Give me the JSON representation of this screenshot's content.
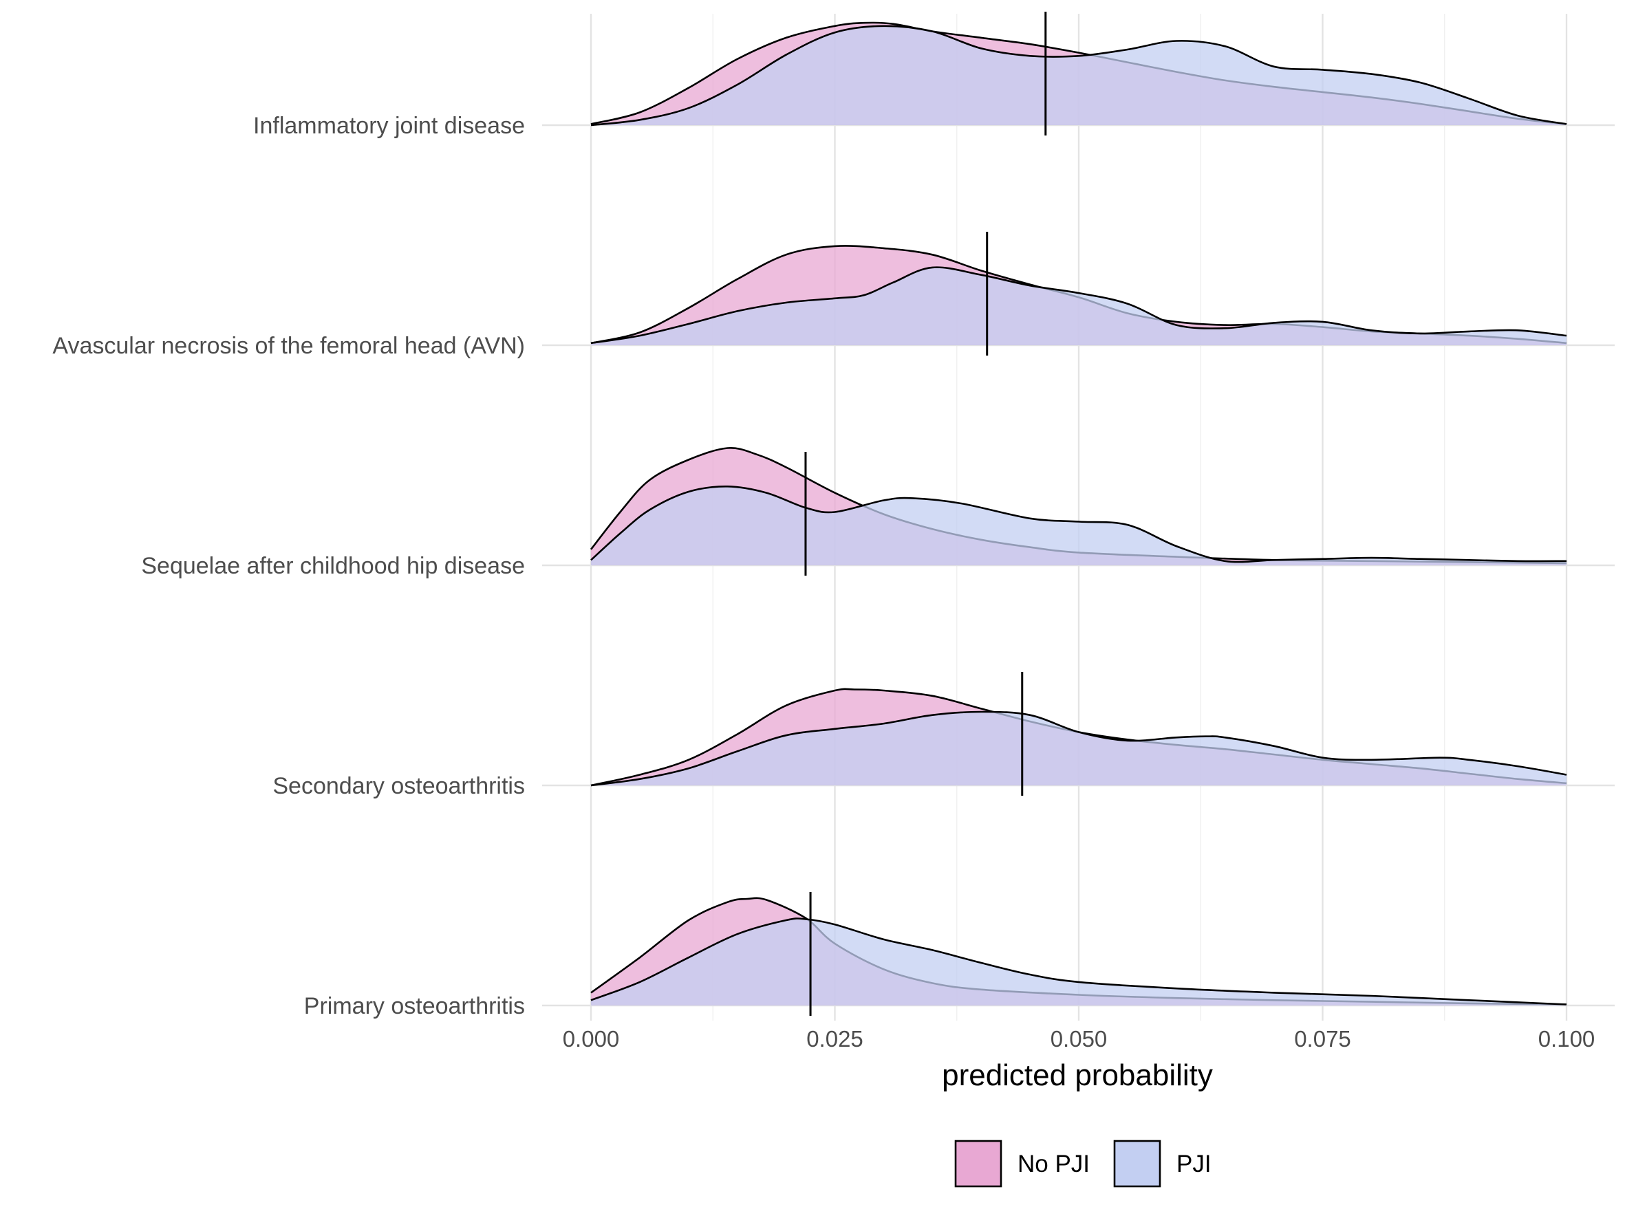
{
  "chart_data": {
    "type": "ridgeline-density",
    "xlabel": "predicted probability",
    "xlim": [
      0,
      0.1
    ],
    "x_ticks": [
      0.0,
      0.025,
      0.05,
      0.075,
      0.1
    ],
    "x_tick_labels": [
      "0.000",
      "0.025",
      "0.050",
      "0.075",
      "0.100"
    ],
    "categories": [
      "Primary osteoarthritis",
      "Secondary osteoarthritis",
      "Sequelae after childhood hip disease",
      "Avascular necrosis of the femoral head (AVN)",
      "Inflammatory joint disease"
    ],
    "series": [
      {
        "name": "No PJI",
        "color": "#e8a8d3",
        "curves": {
          "Primary osteoarthritis": [
            [
              0,
              0.12
            ],
            [
              0.005,
              0.45
            ],
            [
              0.01,
              0.8
            ],
            [
              0.014,
              0.97
            ],
            [
              0.016,
              1.0
            ],
            [
              0.018,
              0.99
            ],
            [
              0.022,
              0.82
            ],
            [
              0.025,
              0.58
            ],
            [
              0.03,
              0.34
            ],
            [
              0.035,
              0.21
            ],
            [
              0.04,
              0.15
            ],
            [
              0.05,
              0.1
            ],
            [
              0.06,
              0.07
            ],
            [
              0.07,
              0.05
            ],
            [
              0.08,
              0.035
            ],
            [
              0.09,
              0.02
            ],
            [
              0.1,
              0.01
            ]
          ],
          "Secondary osteoarthritis": [
            [
              0,
              0.0
            ],
            [
              0.005,
              0.1
            ],
            [
              0.01,
              0.24
            ],
            [
              0.015,
              0.48
            ],
            [
              0.02,
              0.75
            ],
            [
              0.025,
              0.89
            ],
            [
              0.027,
              0.9
            ],
            [
              0.03,
              0.89
            ],
            [
              0.035,
              0.84
            ],
            [
              0.04,
              0.72
            ],
            [
              0.045,
              0.6
            ],
            [
              0.05,
              0.5
            ],
            [
              0.055,
              0.43
            ],
            [
              0.06,
              0.38
            ],
            [
              0.065,
              0.34
            ],
            [
              0.07,
              0.29
            ],
            [
              0.075,
              0.24
            ],
            [
              0.08,
              0.2
            ],
            [
              0.085,
              0.16
            ],
            [
              0.09,
              0.11
            ],
            [
              0.095,
              0.06
            ],
            [
              0.1,
              0.02
            ]
          ],
          "Sequelae after childhood hip disease": [
            [
              0,
              0.15
            ],
            [
              0.003,
              0.5
            ],
            [
              0.006,
              0.8
            ],
            [
              0.01,
              0.99
            ],
            [
              0.014,
              1.1
            ],
            [
              0.017,
              1.04
            ],
            [
              0.02,
              0.92
            ],
            [
              0.025,
              0.68
            ],
            [
              0.03,
              0.48
            ],
            [
              0.035,
              0.34
            ],
            [
              0.04,
              0.24
            ],
            [
              0.045,
              0.17
            ],
            [
              0.05,
              0.12
            ],
            [
              0.06,
              0.08
            ],
            [
              0.07,
              0.05
            ],
            [
              0.08,
              0.04
            ],
            [
              0.09,
              0.03
            ],
            [
              0.1,
              0.02
            ]
          ],
          "Avascular necrosis of the femoral head (AVN)": [
            [
              0,
              0.02
            ],
            [
              0.005,
              0.12
            ],
            [
              0.01,
              0.35
            ],
            [
              0.015,
              0.62
            ],
            [
              0.02,
              0.85
            ],
            [
              0.025,
              0.93
            ],
            [
              0.03,
              0.91
            ],
            [
              0.035,
              0.85
            ],
            [
              0.04,
              0.7
            ],
            [
              0.045,
              0.57
            ],
            [
              0.05,
              0.45
            ],
            [
              0.055,
              0.3
            ],
            [
              0.06,
              0.22
            ],
            [
              0.065,
              0.19
            ],
            [
              0.07,
              0.2
            ],
            [
              0.075,
              0.17
            ],
            [
              0.08,
              0.13
            ],
            [
              0.085,
              0.11
            ],
            [
              0.09,
              0.09
            ],
            [
              0.095,
              0.06
            ],
            [
              0.1,
              0.02
            ]
          ],
          "Inflammatory joint disease": [
            [
              0,
              0.01
            ],
            [
              0.005,
              0.12
            ],
            [
              0.01,
              0.35
            ],
            [
              0.015,
              0.62
            ],
            [
              0.02,
              0.82
            ],
            [
              0.025,
              0.93
            ],
            [
              0.028,
              0.96
            ],
            [
              0.031,
              0.95
            ],
            [
              0.035,
              0.88
            ],
            [
              0.04,
              0.82
            ],
            [
              0.045,
              0.76
            ],
            [
              0.05,
              0.68
            ],
            [
              0.055,
              0.59
            ],
            [
              0.06,
              0.5
            ],
            [
              0.065,
              0.42
            ],
            [
              0.07,
              0.36
            ],
            [
              0.075,
              0.31
            ],
            [
              0.08,
              0.26
            ],
            [
              0.085,
              0.2
            ],
            [
              0.09,
              0.13
            ],
            [
              0.095,
              0.06
            ],
            [
              0.1,
              0.01
            ]
          ]
        }
      },
      {
        "name": "PJI",
        "color": "#c3cff2",
        "curves": {
          "Primary osteoarthritis": [
            [
              0,
              0.05
            ],
            [
              0.005,
              0.22
            ],
            [
              0.01,
              0.45
            ],
            [
              0.015,
              0.67
            ],
            [
              0.02,
              0.8
            ],
            [
              0.022,
              0.81
            ],
            [
              0.025,
              0.76
            ],
            [
              0.03,
              0.62
            ],
            [
              0.035,
              0.52
            ],
            [
              0.04,
              0.4
            ],
            [
              0.045,
              0.29
            ],
            [
              0.05,
              0.22
            ],
            [
              0.06,
              0.16
            ],
            [
              0.07,
              0.12
            ],
            [
              0.08,
              0.09
            ],
            [
              0.09,
              0.05
            ],
            [
              0.1,
              0.01
            ]
          ],
          "Secondary osteoarthritis": [
            [
              0,
              0.0
            ],
            [
              0.005,
              0.06
            ],
            [
              0.01,
              0.16
            ],
            [
              0.015,
              0.32
            ],
            [
              0.02,
              0.47
            ],
            [
              0.025,
              0.53
            ],
            [
              0.03,
              0.58
            ],
            [
              0.035,
              0.66
            ],
            [
              0.04,
              0.69
            ],
            [
              0.045,
              0.66
            ],
            [
              0.05,
              0.5
            ],
            [
              0.055,
              0.42
            ],
            [
              0.06,
              0.45
            ],
            [
              0.063,
              0.46
            ],
            [
              0.065,
              0.45
            ],
            [
              0.07,
              0.37
            ],
            [
              0.075,
              0.26
            ],
            [
              0.08,
              0.24
            ],
            [
              0.087,
              0.26
            ],
            [
              0.09,
              0.24
            ],
            [
              0.095,
              0.18
            ],
            [
              0.1,
              0.1
            ]
          ],
          "Sequelae after childhood hip disease": [
            [
              0,
              0.05
            ],
            [
              0.003,
              0.3
            ],
            [
              0.006,
              0.52
            ],
            [
              0.01,
              0.69
            ],
            [
              0.014,
              0.74
            ],
            [
              0.018,
              0.68
            ],
            [
              0.022,
              0.54
            ],
            [
              0.025,
              0.5
            ],
            [
              0.03,
              0.61
            ],
            [
              0.033,
              0.63
            ],
            [
              0.038,
              0.58
            ],
            [
              0.045,
              0.44
            ],
            [
              0.05,
              0.41
            ],
            [
              0.055,
              0.38
            ],
            [
              0.06,
              0.18
            ],
            [
              0.065,
              0.04
            ],
            [
              0.07,
              0.05
            ],
            [
              0.075,
              0.06
            ],
            [
              0.08,
              0.07
            ],
            [
              0.085,
              0.06
            ],
            [
              0.09,
              0.05
            ],
            [
              0.095,
              0.04
            ],
            [
              0.1,
              0.04
            ]
          ],
          "Avascular necrosis of the femoral head (AVN)": [
            [
              0,
              0.02
            ],
            [
              0.005,
              0.09
            ],
            [
              0.01,
              0.2
            ],
            [
              0.015,
              0.32
            ],
            [
              0.02,
              0.4
            ],
            [
              0.025,
              0.44
            ],
            [
              0.028,
              0.47
            ],
            [
              0.031,
              0.59
            ],
            [
              0.035,
              0.73
            ],
            [
              0.04,
              0.66
            ],
            [
              0.045,
              0.56
            ],
            [
              0.05,
              0.49
            ],
            [
              0.055,
              0.39
            ],
            [
              0.06,
              0.19
            ],
            [
              0.065,
              0.16
            ],
            [
              0.07,
              0.21
            ],
            [
              0.075,
              0.22
            ],
            [
              0.08,
              0.14
            ],
            [
              0.085,
              0.11
            ],
            [
              0.09,
              0.13
            ],
            [
              0.095,
              0.14
            ],
            [
              0.1,
              0.09
            ]
          ],
          "Inflammatory joint disease": [
            [
              0,
              0.0
            ],
            [
              0.005,
              0.05
            ],
            [
              0.01,
              0.16
            ],
            [
              0.015,
              0.38
            ],
            [
              0.02,
              0.66
            ],
            [
              0.025,
              0.87
            ],
            [
              0.03,
              0.93
            ],
            [
              0.035,
              0.88
            ],
            [
              0.04,
              0.72
            ],
            [
              0.045,
              0.65
            ],
            [
              0.05,
              0.65
            ],
            [
              0.055,
              0.71
            ],
            [
              0.06,
              0.79
            ],
            [
              0.065,
              0.74
            ],
            [
              0.07,
              0.55
            ],
            [
              0.075,
              0.52
            ],
            [
              0.08,
              0.48
            ],
            [
              0.085,
              0.4
            ],
            [
              0.09,
              0.25
            ],
            [
              0.095,
              0.09
            ],
            [
              0.1,
              0.01
            ]
          ]
        }
      }
    ],
    "reference_lines": {
      "Primary osteoarthritis": 0.0225,
      "Secondary osteoarthritis": 0.0442,
      "Sequelae after childhood hip disease": 0.022,
      "Avascular necrosis of the femoral head (AVN)": 0.0406,
      "Inflammatory joint disease": 0.0466
    },
    "overlap_color": "#bca4de",
    "legend": {
      "position": "bottom",
      "entries": [
        {
          "label": "No PJI",
          "color": "#e8a8d3"
        },
        {
          "label": "PJI",
          "color": "#c3cff2"
        }
      ]
    },
    "grid": true
  }
}
